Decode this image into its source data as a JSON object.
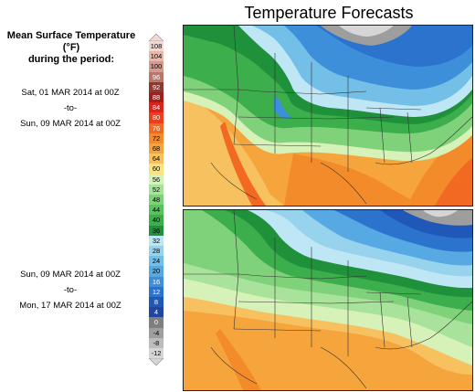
{
  "title": "Temperature Forecasts",
  "legend": {
    "heading_line1": "Mean Surface Temperature (°F)",
    "heading_line2": "during the period:",
    "levels": [
      "108",
      "104",
      "100",
      "96",
      "92",
      "88",
      "84",
      "80",
      "76",
      "72",
      "68",
      "64",
      "60",
      "56",
      "52",
      "48",
      "44",
      "40",
      "36",
      "32",
      "28",
      "24",
      "20",
      "16",
      "12",
      "8",
      "4",
      "0",
      "-4",
      "-8",
      "-12"
    ],
    "colors": [
      "#f2d8d0",
      "#e6b9ad",
      "#d49a8c",
      "#b9776b",
      "#8b3a33",
      "#a51d18",
      "#d7261c",
      "#ee3c1d",
      "#f26a22",
      "#f38b2a",
      "#f6a53d",
      "#f8c160",
      "#fae27f",
      "#d6f2b8",
      "#a9e29a",
      "#7fd27a",
      "#5bc262",
      "#3cae4c",
      "#1f913a",
      "#bfe6f4",
      "#98d3ee",
      "#74bfe8",
      "#56a9e2",
      "#3d8fda",
      "#2b73cd",
      "#1f58b8",
      "#2146a0",
      "#7f7f7f",
      "#9e9e9e",
      "#bcbcbc",
      "#d6d6d6"
    ]
  },
  "panels": [
    {
      "start": "Sat, 01 MAR 2014 at 00Z",
      "sep": "-to-",
      "end": "Sun, 09 MAR 2014 at 00Z"
    },
    {
      "start": "Sun, 09 MAR 2014 at 00Z",
      "sep": "-to-",
      "end": "Mon, 17 MAR 2014 at 00Z"
    }
  ]
}
